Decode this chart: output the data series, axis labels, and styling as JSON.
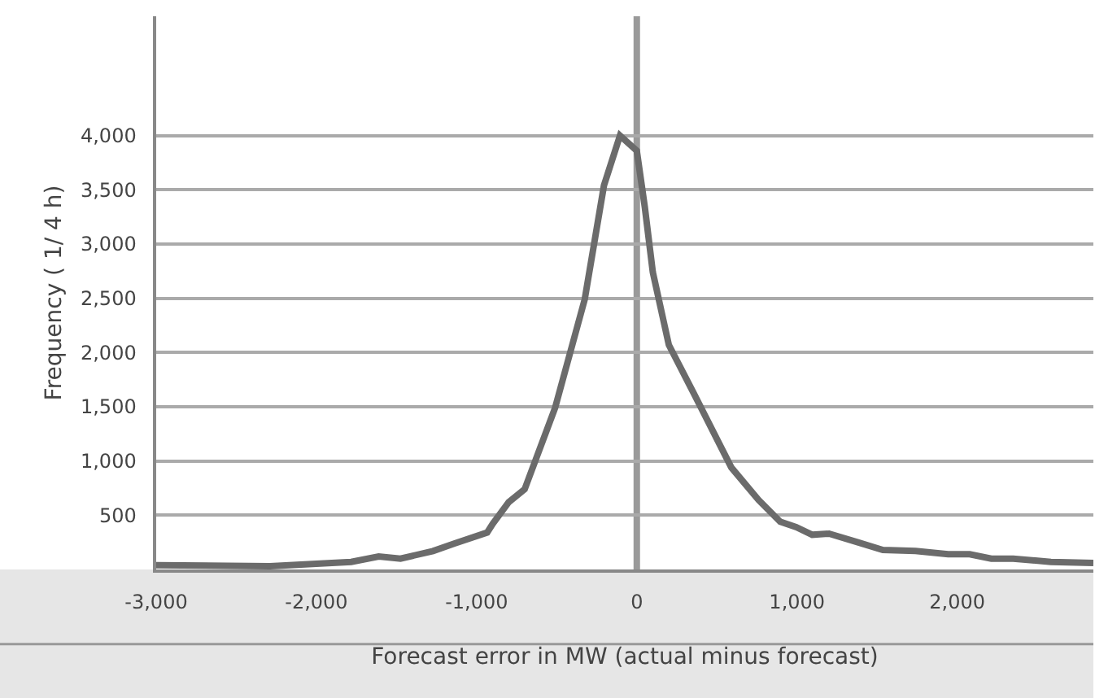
{
  "chart_data": {
    "type": "line",
    "xlabel": "Forecast error in MW (actual minus forecast)",
    "ylabel": "Frequency ( 1/ 4 h)",
    "x": [
      -3000,
      -2290,
      -1783,
      -1611,
      -1475,
      -1272,
      -1137,
      -934,
      -900,
      -815,
      -800,
      -700,
      -510,
      -325,
      -205,
      -105,
      0,
      50,
      100,
      200,
      350,
      590,
      760,
      895,
      995,
      1095,
      1200,
      1380,
      1536,
      1740,
      1943,
      2078,
      2213,
      2350,
      2585,
      2850
    ],
    "series": [
      {
        "color": "#6b6b6b",
        "values": [
          40,
          30,
          70,
          120,
          100,
          170,
          240,
          340,
          420,
          590,
          620,
          740,
          1490,
          2490,
          3540,
          4000,
          3860,
          3340,
          2740,
          2070,
          1640,
          940,
          640,
          440,
          390,
          320,
          330,
          250,
          180,
          170,
          140,
          140,
          100,
          100,
          70,
          60
        ]
      }
    ],
    "xlim": [
      -3000,
      2850
    ],
    "ylim": [
      0,
      5100
    ],
    "xticks": [
      {
        "value": -3000,
        "label": "-3,000"
      },
      {
        "value": -2000,
        "label": "-2,000"
      },
      {
        "value": -1000,
        "label": "-1,000"
      },
      0,
      {
        "value": 1000,
        "label": "1,000"
      },
      {
        "value": 2000,
        "label": "2,000"
      }
    ],
    "yticks": [
      500,
      {
        "value": 1000,
        "label": "1,000"
      },
      {
        "value": 1500,
        "label": "1,500"
      },
      {
        "value": 2000,
        "label": "2,000"
      },
      {
        "value": 2500,
        "label": "2,500"
      },
      {
        "value": 3000,
        "label": "3,000"
      },
      {
        "value": 3500,
        "label": "3,500"
      },
      {
        "value": 4000,
        "label": "4,000"
      }
    ],
    "grid": "y",
    "marker": "none",
    "line_style": "solid",
    "ref_lines": [
      {
        "axis": "x",
        "value": 0,
        "color": "#9a9a9a"
      }
    ]
  }
}
